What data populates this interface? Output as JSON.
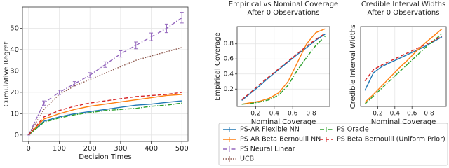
{
  "chart_data": [
    {
      "type": "line",
      "xlabel": "Decision Times",
      "ylabel": "Cumulative Regret",
      "x": [
        0,
        50,
        100,
        150,
        200,
        250,
        300,
        350,
        400,
        450,
        500
      ],
      "xlim": [
        -20,
        520
      ],
      "ylim": [
        -3,
        60
      ],
      "xticks": [
        0,
        100,
        200,
        300,
        400,
        500
      ],
      "yticks": [
        0,
        10,
        20,
        30,
        40,
        50
      ],
      "grid": true,
      "series": [
        {
          "name": "PS-AR Flexible NN",
          "color": "#1f77b4",
          "linestyle": "solid",
          "values": [
            0,
            6.5,
            8.5,
            10,
            11,
            12,
            13,
            14,
            14.5,
            15.3,
            16
          ]
        },
        {
          "name": "PS-AR Beta-Bernoulli NN",
          "color": "#ff7f0e",
          "linestyle": "solid",
          "values": [
            0,
            7.5,
            10,
            12,
            13.5,
            14.5,
            15.5,
            16.5,
            17.5,
            18.5,
            19
          ]
        },
        {
          "name": "PS Neural Linear",
          "color": "#9467bd",
          "linestyle": "dashdot",
          "values": [
            0,
            15,
            20,
            24,
            28,
            33,
            38,
            42,
            46,
            50,
            55
          ],
          "errors": [
            0,
            1,
            1,
            1,
            1.2,
            1.3,
            1.5,
            1.6,
            1.8,
            2,
            2.5
          ]
        },
        {
          "name": "UCB",
          "color": "#8c564b",
          "linestyle": "dotted",
          "values": [
            0,
            12,
            19,
            23,
            26,
            29,
            32,
            35,
            37,
            39,
            41
          ]
        },
        {
          "name": "PS Oracle",
          "color": "#2ca02c",
          "linestyle": "dashdot",
          "values": [
            0,
            6,
            8,
            9.5,
            10.5,
            11.5,
            12,
            12.5,
            13.5,
            14,
            15
          ]
        },
        {
          "name": "PS Beta-Bernoulli (Uniform Prior)",
          "color": "#d62728",
          "linestyle": "dashed",
          "values": [
            0,
            8.5,
            11.5,
            13.5,
            15,
            16,
            17,
            18,
            18.5,
            19,
            20
          ]
        }
      ]
    },
    {
      "type": "line",
      "title": "Empirical vs Nominal Coverage",
      "subtitle": "After 0 Observations",
      "xlabel": "Nominal Coverage",
      "ylabel": "Empirical Coverage",
      "x": [
        0.05,
        0.15,
        0.25,
        0.35,
        0.45,
        0.55,
        0.65,
        0.75,
        0.85,
        0.95
      ],
      "xlim": [
        0,
        1
      ],
      "ylim": [
        -0.03,
        1.03
      ],
      "xticks": [
        0.2,
        0.4,
        0.6,
        0.8
      ],
      "yticks": [
        0.2,
        0.4,
        0.6,
        0.8
      ],
      "grid": true,
      "series": [
        {
          "color": "#1f77b4",
          "linestyle": "solid",
          "values": [
            0.05,
            0.15,
            0.25,
            0.36,
            0.46,
            0.56,
            0.66,
            0.75,
            0.85,
            0.93
          ]
        },
        {
          "color": "#ff7f0e",
          "linestyle": "solid",
          "values": [
            0,
            0.02,
            0.04,
            0.08,
            0.15,
            0.3,
            0.55,
            0.8,
            0.95,
            1
          ]
        },
        {
          "color": "#2ca02c",
          "linestyle": "dashdot",
          "values": [
            0,
            0.01,
            0.03,
            0.06,
            0.12,
            0.25,
            0.45,
            0.62,
            0.78,
            0.9
          ]
        },
        {
          "color": "#d62728",
          "linestyle": "dashed",
          "values": [
            0.06,
            0.16,
            0.27,
            0.37,
            0.47,
            0.57,
            0.67,
            0.77,
            0.86,
            0.94
          ]
        }
      ]
    },
    {
      "type": "line",
      "title": "Credible Interval Widths",
      "subtitle": "After 0 Observations",
      "xlabel": "Nominal Coverage",
      "ylabel": "Credible Interval Widths",
      "x": [
        0.05,
        0.15,
        0.25,
        0.35,
        0.45,
        0.55,
        0.65,
        0.75,
        0.85,
        0.95
      ],
      "xlim": [
        0,
        1
      ],
      "ylim": [
        0,
        1
      ],
      "xticks": [
        0.2,
        0.4,
        0.6,
        0.8
      ],
      "yticks": [],
      "grid": true,
      "series": [
        {
          "color": "#1f77b4",
          "linestyle": "solid",
          "values": [
            0.2,
            0.42,
            0.5,
            0.55,
            0.6,
            0.65,
            0.7,
            0.75,
            0.81,
            0.87
          ]
        },
        {
          "color": "#ff7f0e",
          "linestyle": "solid",
          "values": [
            0.05,
            0.15,
            0.26,
            0.37,
            0.48,
            0.58,
            0.69,
            0.79,
            0.88,
            0.97
          ]
        },
        {
          "color": "#2ca02c",
          "linestyle": "dashdot",
          "values": [
            0.03,
            0.13,
            0.23,
            0.33,
            0.43,
            0.53,
            0.63,
            0.73,
            0.82,
            0.91
          ]
        },
        {
          "color": "#d62728",
          "linestyle": "dashed",
          "values": [
            0.32,
            0.46,
            0.52,
            0.57,
            0.62,
            0.67,
            0.72,
            0.77,
            0.82,
            0.88
          ]
        }
      ]
    }
  ]
}
